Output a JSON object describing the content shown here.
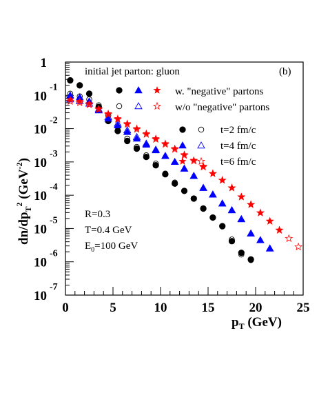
{
  "chart_data": {
    "type": "scatter",
    "title": "initial jet parton: gluon",
    "panel_tag": "(b)",
    "xlabel": {
      "main": "p",
      "sub": "T",
      "rest": " (GeV)"
    },
    "ylabel": {
      "part1": "dn/dp",
      "sub": "T",
      "sup": "2",
      "part2": " (GeV",
      "sup2": "-2",
      "part3": ")"
    },
    "x_ticks": [
      0,
      5,
      10,
      15,
      20,
      25
    ],
    "y_ticks": [
      {
        "exp": 0,
        "base": "1",
        "sup": ""
      },
      {
        "exp": -1,
        "base": "10",
        "sup": "-1"
      },
      {
        "exp": -2,
        "base": "10",
        "sup": "-2"
      },
      {
        "exp": -3,
        "base": "10",
        "sup": "-3"
      },
      {
        "exp": -4,
        "base": "10",
        "sup": "-4"
      },
      {
        "exp": -5,
        "base": "10",
        "sup": "-5"
      },
      {
        "exp": -6,
        "base": "10",
        "sup": "-6"
      },
      {
        "exp": -7,
        "base": "10",
        "sup": "-7"
      }
    ],
    "xlim": [
      0,
      25
    ],
    "ylim_log10": [
      -7,
      0
    ],
    "y_scale": "log",
    "legend_top": {
      "row1_label": "w.   \"negative\" partons",
      "row2_label": "w/o \"negative\" partons"
    },
    "legend_time": [
      {
        "label": "t=2 fm/c"
      },
      {
        "label": "t=4 fm/c"
      },
      {
        "label": "t=6 fm/c"
      }
    ],
    "params": [
      {
        "text": "R=0.3"
      },
      {
        "text": "T=0.4 GeV"
      },
      {
        "base": "E",
        "sub": "0",
        "rest": "=100 GeV"
      }
    ],
    "colors": {
      "t2": "#000000",
      "t4": "#0000ff",
      "t6": "#ff0000"
    },
    "series": [
      {
        "time": "t2",
        "marker": "circle",
        "filled": true,
        "x": [
          0.5,
          1.5,
          2.5,
          3.5,
          4.5,
          5.5,
          6.5,
          7.5,
          8.5,
          9.5,
          10.5,
          11.5,
          12.5,
          13.5,
          14.5,
          15.5,
          16.5,
          17.5,
          18.5,
          19.5
        ],
        "y": [
          -0.55,
          -0.7,
          -0.95,
          -1.35,
          -1.77,
          -2.07,
          -2.37,
          -2.6,
          -2.85,
          -3.1,
          -3.37,
          -3.65,
          -3.87,
          -4.1,
          -4.4,
          -4.67,
          -4.93,
          -5.38,
          -5.73,
          -5.93
        ]
      },
      {
        "time": "t2",
        "marker": "circle",
        "filled": false,
        "x": [
          0.5,
          1.5,
          2.5,
          3.5,
          4.5,
          5.5,
          6.5,
          7.5,
          8.5,
          9.5,
          10.5,
          11.5,
          12.5,
          13.5,
          14.5,
          15.5,
          16.5,
          17.5,
          18.5,
          19.5
        ],
        "y": [
          -0.95,
          -1.03,
          -1.12,
          -1.3,
          -1.6,
          -1.95,
          -2.3,
          -2.55,
          -2.8,
          -3.05,
          -3.35,
          -3.62,
          -3.87,
          -4.1,
          -4.4,
          -4.67,
          -4.93,
          -5.33,
          -5.78,
          -5.95
        ]
      },
      {
        "time": "t4",
        "marker": "triangle",
        "filled": true,
        "x": [
          0.5,
          1.5,
          2.5,
          3.5,
          4.5,
          5.5,
          6.5,
          7.5,
          8.5,
          9.5,
          10.5,
          11.5,
          12.5,
          13.5,
          14.5,
          15.5,
          16.5,
          17.5,
          18.5,
          19.5,
          20.5,
          21.5
        ],
        "y": [
          -1.0,
          -1.06,
          -1.18,
          -1.45,
          -1.7,
          -1.9,
          -2.1,
          -2.3,
          -2.48,
          -2.65,
          -2.82,
          -3.0,
          -3.2,
          -3.42,
          -3.78,
          -3.98,
          -4.25,
          -4.45,
          -4.72,
          -5.15,
          -5.35,
          -5.6
        ]
      },
      {
        "time": "t4",
        "marker": "triangle",
        "filled": false,
        "x": [
          0.5,
          1.5,
          2.5,
          3.5,
          4.5,
          5.5,
          6.5,
          7.5,
          8.5,
          9.5,
          10.5,
          11.5,
          12.5,
          13.5,
          14.5,
          15.5,
          16.5,
          17.5,
          18.5,
          19.5,
          20.5,
          21.5
        ],
        "y": [
          -1.12,
          -1.17,
          -1.25,
          -1.42,
          -1.65,
          -1.85,
          -2.05,
          -2.25,
          -2.45,
          -2.63,
          -2.82,
          -3.0,
          -3.2,
          -3.42,
          -3.78,
          -3.98,
          -4.25,
          -4.45,
          -4.72,
          -5.15,
          -5.35,
          -5.6
        ]
      },
      {
        "time": "t6",
        "marker": "star",
        "filled": true,
        "x": [
          0.5,
          1.5,
          2.5,
          3.5,
          4.5,
          5.5,
          6.5,
          7.5,
          8.5,
          9.5,
          10.5,
          11.5,
          12.5,
          13.5,
          14.5,
          15.5,
          16.5,
          17.5,
          18.5,
          19.5,
          20.5,
          21.5,
          22.5
        ],
        "y": [
          -1.13,
          -1.18,
          -1.25,
          -1.4,
          -1.55,
          -1.7,
          -1.85,
          -2.0,
          -2.15,
          -2.3,
          -2.45,
          -2.6,
          -2.78,
          -2.95,
          -3.13,
          -3.35,
          -3.55,
          -3.78,
          -4.05,
          -4.28,
          -4.53,
          -4.78,
          -5.05
        ]
      },
      {
        "time": "t6",
        "marker": "star",
        "filled": false,
        "x": [
          0.5,
          1.5,
          2.5,
          3.5,
          4.5,
          5.5,
          6.5,
          7.5,
          8.5,
          9.5,
          10.5,
          11.5,
          12.5,
          13.5,
          14.5,
          15.5,
          16.5,
          17.5,
          18.5,
          19.5,
          20.5,
          21.5,
          22.5,
          23.5,
          24.5
        ],
        "y": [
          -1.18,
          -1.22,
          -1.28,
          -1.42,
          -1.57,
          -1.72,
          -1.87,
          -2.02,
          -2.17,
          -2.32,
          -2.47,
          -2.62,
          -2.8,
          -2.97,
          -3.15,
          -3.35,
          -3.55,
          -3.78,
          -4.05,
          -4.28,
          -4.53,
          -4.78,
          -5.05,
          -5.3,
          -5.55
        ]
      }
    ]
  }
}
